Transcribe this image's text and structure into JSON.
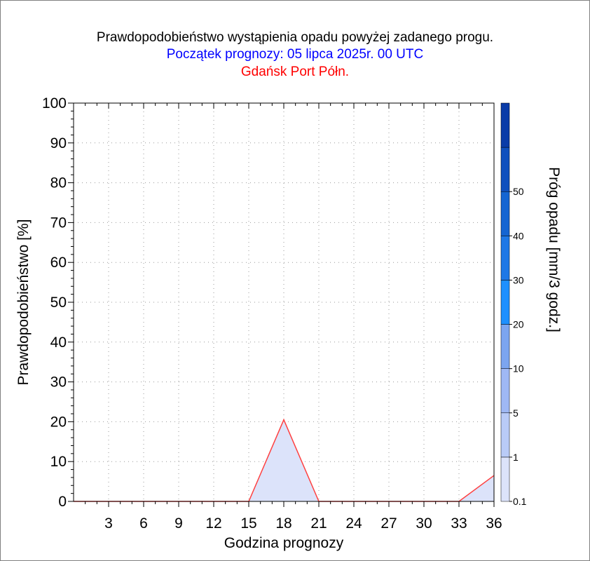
{
  "title": "Prawdopodobieństwo wystąpienia opadu powyżej zadanego progu.",
  "subtitle": "Początek prognozy: 05 lipca 2025r. 00 UTC",
  "location": "Gdańsk Port Półn.",
  "chart_data": {
    "type": "area",
    "title": "Prawdopodobieństwo wystąpienia opadu powyżej zadanego progu.",
    "xlabel": "Godzina prognozy",
    "ylabel": "Prawdopodobieństwo [%]",
    "xlim": [
      0,
      36
    ],
    "ylim": [
      0,
      100
    ],
    "xticks": [
      3,
      6,
      9,
      12,
      15,
      18,
      21,
      24,
      27,
      30,
      33,
      36
    ],
    "yticks": [
      0,
      10,
      20,
      30,
      40,
      50,
      60,
      70,
      80,
      90,
      100
    ],
    "grid": true,
    "series": [
      {
        "name": "0.1",
        "color": "#ff4040",
        "fill": "#dce3fa",
        "x": [
          0,
          3,
          6,
          9,
          12,
          15,
          18,
          21,
          24,
          27,
          30,
          33,
          36
        ],
        "y": [
          0,
          0,
          0,
          0,
          0,
          0,
          20.5,
          0,
          0,
          0,
          0,
          0,
          6.5
        ]
      }
    ],
    "colorbar": {
      "label": "Próg opadu [mm/3 godz.]",
      "labels": [
        "0.1",
        "1",
        "5",
        "10",
        "20",
        "30",
        "40",
        "50"
      ],
      "colors": [
        "#dce3fa",
        "#b9cbf7",
        "#9fb8f4",
        "#7ca5f0",
        "#1e90ff",
        "#1e78e6",
        "#1465d2",
        "#0f50be",
        "#0a3ca8"
      ]
    }
  }
}
